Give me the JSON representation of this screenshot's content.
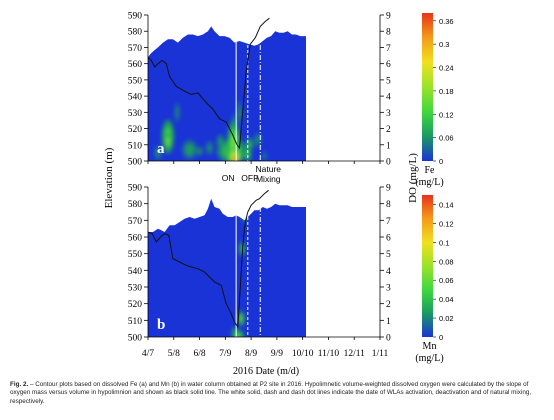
{
  "chart_data": [
    {
      "type": "heatmap",
      "panel_label": "a",
      "variable": "Fe",
      "y_left_ticks": [
        500,
        510,
        520,
        530,
        540,
        550,
        560,
        570,
        580,
        590
      ],
      "y_right_ticks": [
        0,
        1,
        2,
        3,
        4,
        5,
        6,
        7,
        8,
        9
      ],
      "ylim_elevation": [
        500,
        590
      ],
      "ylim_do": [
        0,
        9
      ],
      "colorbar": {
        "label_name": "Fe",
        "label_unit": "(mg/L)",
        "ticks": [
          "0",
          "0.06",
          "0.12",
          "0.18",
          "0.24",
          "0.3",
          "0.36"
        ],
        "max": 0.38,
        "colors": [
          "#1a33d6",
          "#1a9a60",
          "#3fd83f",
          "#9be22a",
          "#f0e020",
          "#f59b1a",
          "#e8331a"
        ]
      },
      "event_labels": [
        "ON",
        "OFF",
        "Nature\nMixing"
      ],
      "water_surface_elevation": [
        [
          -0.2,
          564
        ],
        [
          0,
          564
        ],
        [
          3,
          566
        ],
        [
          7,
          568
        ],
        [
          12,
          570
        ],
        [
          18,
          573
        ],
        [
          24,
          575
        ],
        [
          30,
          575
        ],
        [
          36,
          573
        ],
        [
          42,
          576
        ],
        [
          48,
          578
        ],
        [
          54,
          578
        ],
        [
          60,
          577
        ],
        [
          66,
          578
        ],
        [
          72,
          580
        ],
        [
          76,
          583
        ],
        [
          80,
          580
        ],
        [
          86,
          577
        ],
        [
          92,
          577
        ],
        [
          98,
          576
        ],
        [
          104,
          573
        ],
        [
          110,
          574
        ],
        [
          116,
          573
        ],
        [
          122,
          572
        ],
        [
          128,
          571
        ],
        [
          133,
          572
        ],
        [
          138,
          574
        ],
        [
          143,
          576
        ],
        [
          148,
          577
        ],
        [
          153,
          580
        ],
        [
          158,
          579
        ],
        [
          163,
          579
        ],
        [
          168,
          580
        ],
        [
          173,
          578
        ],
        [
          178,
          578
        ],
        [
          183,
          577
        ],
        [
          190,
          577
        ]
      ],
      "do_line": [
        [
          0,
          6.4
        ],
        [
          4,
          6.2
        ],
        [
          8,
          5.8
        ],
        [
          12,
          6.0
        ],
        [
          17,
          6.2
        ],
        [
          22,
          6.0
        ],
        [
          26,
          5.2
        ],
        [
          34,
          4.6
        ],
        [
          44,
          4.3
        ],
        [
          52,
          4.1
        ],
        [
          60,
          4.2
        ],
        [
          70,
          3.6
        ],
        [
          78,
          3.2
        ],
        [
          86,
          2.6
        ],
        [
          94,
          2.4
        ],
        [
          102,
          1.6
        ],
        [
          107,
          1.0
        ],
        [
          110,
          0.8
        ],
        [
          113,
          2.5
        ],
        [
          118,
          5.5
        ],
        [
          123,
          7.2
        ],
        [
          129,
          7.6
        ],
        [
          135,
          8.3
        ],
        [
          141,
          8.6
        ],
        [
          146,
          8.8
        ]
      ],
      "hotspots": [
        [
          24,
          515,
          5,
          7,
          0.13
        ],
        [
          24,
          512,
          2.5,
          3.5,
          0.17
        ],
        [
          12,
          505,
          3,
          3,
          0.06
        ],
        [
          35,
          530,
          2,
          4,
          0.06
        ],
        [
          50,
          507,
          6,
          4,
          0.07
        ],
        [
          62,
          506,
          3,
          2,
          0.06
        ],
        [
          74,
          508,
          3,
          3,
          0.06
        ],
        [
          87,
          512,
          3,
          3,
          0.07
        ],
        [
          96,
          509,
          3,
          2,
          0.06
        ],
        [
          104,
          525,
          2,
          3,
          0.05
        ],
        [
          101,
          506,
          12,
          5,
          0.12
        ],
        [
          103,
          510,
          5,
          10,
          0.16
        ],
        [
          104,
          503,
          5,
          3,
          0.25
        ],
        [
          105,
          501,
          3,
          2,
          0.37
        ],
        [
          122,
          510,
          3,
          3,
          0.1
        ],
        [
          120,
          504,
          3,
          3,
          0.11
        ],
        [
          110,
          530,
          2,
          5,
          0.06
        ],
        [
          132,
          513,
          3,
          3,
          0.06
        ],
        [
          140,
          503,
          2,
          2,
          0.05
        ]
      ]
    },
    {
      "type": "heatmap",
      "panel_label": "b",
      "variable": "Mn",
      "y_left_ticks": [
        500,
        510,
        520,
        530,
        540,
        550,
        560,
        570,
        580,
        590
      ],
      "y_right_ticks": [
        0,
        1,
        2,
        3,
        4,
        5,
        6,
        7,
        8,
        9
      ],
      "ylim_elevation": [
        500,
        590
      ],
      "ylim_do": [
        0,
        9
      ],
      "colorbar": {
        "label_name": "Mn",
        "label_unit": "(mg/L)",
        "ticks": [
          "0",
          "0.02",
          "0.04",
          "0.06",
          "0.08",
          "0.1",
          "0.12",
          "0.14"
        ],
        "max": 0.15,
        "colors": [
          "#1a33d6",
          "#1a9a60",
          "#3fd83f",
          "#9be22a",
          "#f0e020",
          "#f59b1a",
          "#e8331a"
        ]
      },
      "water_surface_elevation": [
        [
          -0.2,
          563
        ],
        [
          0,
          563
        ],
        [
          6,
          563
        ],
        [
          12,
          565
        ],
        [
          16,
          564
        ],
        [
          20,
          563
        ],
        [
          26,
          567
        ],
        [
          32,
          567
        ],
        [
          38,
          569
        ],
        [
          44,
          571
        ],
        [
          50,
          572
        ],
        [
          56,
          571
        ],
        [
          62,
          572
        ],
        [
          68,
          573
        ],
        [
          72,
          577
        ],
        [
          76,
          583
        ],
        [
          80,
          578
        ],
        [
          86,
          577
        ],
        [
          90,
          574
        ],
        [
          96,
          572
        ],
        [
          102,
          572
        ],
        [
          106,
          573
        ],
        [
          110,
          572
        ],
        [
          116,
          570
        ],
        [
          120,
          572
        ],
        [
          124,
          574
        ],
        [
          128,
          576
        ],
        [
          133,
          576
        ],
        [
          138,
          578
        ],
        [
          143,
          577
        ],
        [
          148,
          578
        ],
        [
          153,
          580
        ],
        [
          158,
          579
        ],
        [
          163,
          579
        ],
        [
          168,
          579
        ],
        [
          173,
          578
        ],
        [
          178,
          578
        ],
        [
          183,
          578
        ],
        [
          190,
          578
        ]
      ],
      "do_line": [
        [
          0,
          6.3
        ],
        [
          5,
          6.2
        ],
        [
          10,
          5.7
        ],
        [
          15,
          6.0
        ],
        [
          20,
          6.2
        ],
        [
          25,
          6.1
        ],
        [
          30,
          4.7
        ],
        [
          38,
          4.5
        ],
        [
          46,
          4.3
        ],
        [
          52,
          4.2
        ],
        [
          60,
          4.1
        ],
        [
          68,
          3.9
        ],
        [
          74,
          3.6
        ],
        [
          80,
          3.3
        ],
        [
          88,
          3.1
        ],
        [
          94,
          2.0
        ],
        [
          100,
          1.4
        ],
        [
          104,
          0.9
        ],
        [
          108,
          0.6
        ],
        [
          111,
          3.0
        ],
        [
          114,
          5.5
        ],
        [
          117,
          6.9
        ],
        [
          120,
          7.5
        ],
        [
          124,
          7.9
        ],
        [
          130,
          8.2
        ],
        [
          134,
          8.3
        ],
        [
          140,
          8.6
        ],
        [
          145,
          8.8
        ]
      ],
      "hotspots": [
        [
          112,
          511,
          2.5,
          3,
          0.06
        ],
        [
          113,
          553,
          2,
          3,
          0.05
        ],
        [
          105,
          503,
          3,
          2,
          0.04
        ],
        [
          108,
          501,
          5,
          2,
          0.05
        ],
        [
          116,
          572,
          2,
          2,
          0.04
        ]
      ]
    }
  ],
  "x_axis": {
    "label": "2016 Date (m/d)",
    "ticks": [
      "4/7",
      "5/8",
      "6/8",
      "7/9",
      "8/9",
      "9/9",
      "10/10",
      "11/10",
      "12/11",
      "1/11"
    ],
    "tick_days": [
      0,
      31,
      62,
      93,
      124,
      155,
      186,
      217,
      248,
      279
    ]
  },
  "y_axis_left": {
    "label": "Elevation (m)"
  },
  "y_axis_right": {
    "label": "DO (mg/L)"
  },
  "events": [
    {
      "name": "ON",
      "day": 106,
      "style": "solid"
    },
    {
      "name": "OFF",
      "day": 120,
      "style": "dash"
    },
    {
      "name": "Nature Mixing",
      "day": 135,
      "style": "dashdot"
    }
  ],
  "caption": {
    "prefix": "Fig. 2.",
    "text": " – Contour plots based on dissolved Fe (a) and Mn (b) in water column obtained at P2 site in 2016. Hypolimnetic volume-weighted dissolved oxygen were calculated by the slope of oxygen mass versus volume in hypolimnion and shown as black solid line. The white solid, dash and dash dot lines indicate the date of WLAs activation, deactivation and of natural mixing, respectively."
  }
}
